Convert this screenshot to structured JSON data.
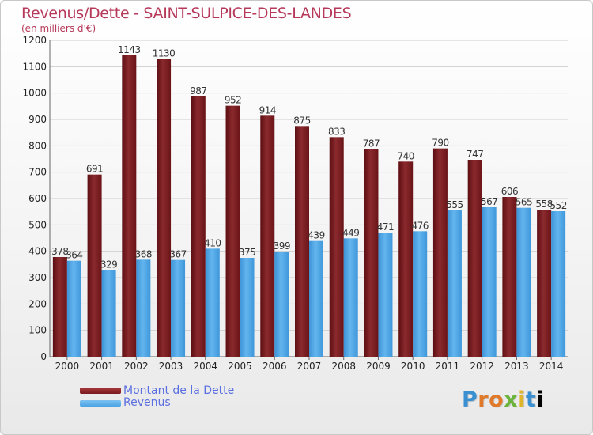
{
  "header": {
    "title": "Revenus/Dette - SAINT-SULPICE-DES-LANDES",
    "subtitle": "(en milliers d'€)"
  },
  "legend": {
    "items": [
      {
        "label": "Montant de la Dette",
        "color": "#7a1a1e"
      },
      {
        "label": "Revenus",
        "color": "#4ba3e3"
      }
    ]
  },
  "logo": {
    "text": "Proxiti"
  },
  "colors": {
    "dette": "#7a1a1e",
    "revenus": "#4ba3e3",
    "grid": "#cfcfcf"
  },
  "chart_data": {
    "type": "bar",
    "title": "Revenus/Dette - SAINT-SULPICE-DES-LANDES",
    "subtitle": "(en milliers d'€)",
    "xlabel": "",
    "ylabel": "",
    "ylim": [
      0,
      1200
    ],
    "yticks": [
      0,
      100,
      200,
      300,
      400,
      500,
      600,
      700,
      800,
      900,
      1000,
      1100,
      1200
    ],
    "grid": true,
    "legend_position": "bottom-left",
    "categories": [
      "2000",
      "2001",
      "2002",
      "2003",
      "2004",
      "2005",
      "2006",
      "2007",
      "2008",
      "2009",
      "2010",
      "2011",
      "2012",
      "2013",
      "2014"
    ],
    "series": [
      {
        "name": "Montant de la Dette",
        "values": [
          378,
          691,
          1143,
          1130,
          987,
          952,
          914,
          875,
          833,
          787,
          740,
          790,
          747,
          606,
          558
        ]
      },
      {
        "name": "Revenus",
        "values": [
          364,
          329,
          368,
          367,
          410,
          375,
          399,
          439,
          449,
          471,
          476,
          555,
          567,
          565,
          552
        ]
      }
    ]
  }
}
